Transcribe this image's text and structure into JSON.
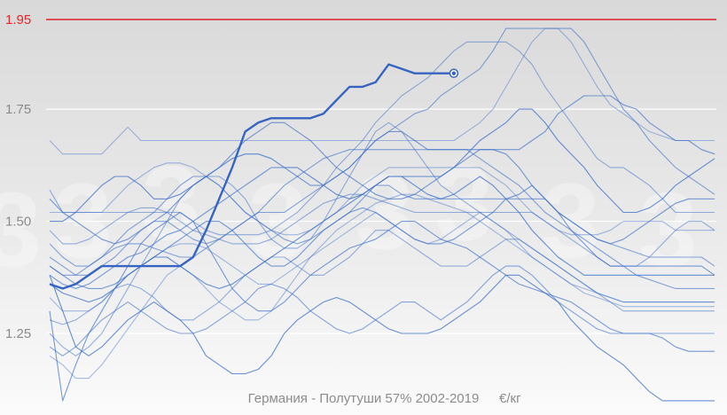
{
  "chart_data": {
    "type": "line",
    "title": "Германия - Полутуши 57% 2002-2019",
    "unit": "€/кг",
    "ylim": [
      1.1,
      1.97
    ],
    "xlim": [
      1,
      52
    ],
    "y_ticks": [
      "1.25",
      "1.50",
      "1.75"
    ],
    "reference_line": {
      "value": 1.95,
      "label": "1.95",
      "color": "#e0202a"
    },
    "grid": true,
    "watermark_text": "3",
    "series_color": "#3b6fc9",
    "highlight_color": "#3564c2",
    "series": [
      {
        "values": [
          1.68,
          1.65,
          1.65,
          1.65,
          1.65,
          1.68,
          1.71,
          1.68,
          1.68,
          1.68,
          1.68,
          1.68,
          1.68,
          1.68,
          1.68,
          1.68,
          1.68,
          1.68,
          1.68,
          1.68,
          1.68,
          1.68,
          1.68,
          1.68,
          1.68,
          1.68,
          1.68,
          1.68,
          1.68,
          1.68,
          1.68,
          1.68,
          1.7,
          1.72,
          1.75,
          1.8,
          1.85,
          1.9,
          1.93,
          1.93,
          1.9,
          1.85,
          1.8,
          1.76,
          1.74,
          1.72,
          1.7,
          1.69,
          1.68,
          1.68,
          1.68,
          1.68
        ]
      },
      {
        "values": [
          1.57,
          1.52,
          1.52,
          1.52,
          1.52,
          1.52,
          1.52,
          1.52,
          1.52,
          1.52,
          1.52,
          1.5,
          1.48,
          1.47,
          1.47,
          1.47,
          1.47,
          1.48,
          1.5,
          1.52,
          1.55,
          1.58,
          1.62,
          1.65,
          1.68,
          1.72,
          1.75,
          1.78,
          1.8,
          1.82,
          1.85,
          1.88,
          1.9,
          1.9,
          1.9,
          1.9,
          1.88,
          1.85,
          1.8,
          1.76,
          1.72,
          1.68,
          1.64,
          1.62,
          1.62,
          1.6,
          1.58,
          1.55,
          1.52,
          1.52,
          1.52,
          1.52
        ]
      },
      {
        "values": [
          1.4,
          1.38,
          1.38,
          1.4,
          1.42,
          1.44,
          1.45,
          1.45,
          1.44,
          1.43,
          1.42,
          1.42,
          1.44,
          1.46,
          1.48,
          1.5,
          1.52,
          1.52,
          1.52,
          1.54,
          1.56,
          1.58,
          1.6,
          1.62,
          1.65,
          1.68,
          1.7,
          1.72,
          1.74,
          1.75,
          1.78,
          1.8,
          1.82,
          1.84,
          1.88,
          1.93,
          1.93,
          1.93,
          1.93,
          1.93,
          1.93,
          1.9,
          1.85,
          1.8,
          1.75,
          1.72,
          1.68,
          1.65,
          1.62,
          1.6,
          1.58,
          1.56
        ]
      },
      {
        "values": [
          1.38,
          1.36,
          1.35,
          1.36,
          1.38,
          1.4,
          1.42,
          1.43,
          1.45,
          1.47,
          1.48,
          1.5,
          1.52,
          1.54,
          1.56,
          1.58,
          1.6,
          1.62,
          1.62,
          1.6,
          1.58,
          1.58,
          1.6,
          1.62,
          1.65,
          1.68,
          1.7,
          1.7,
          1.68,
          1.66,
          1.66,
          1.66,
          1.66,
          1.66,
          1.66,
          1.66,
          1.66,
          1.68,
          1.7,
          1.74,
          1.76,
          1.78,
          1.78,
          1.78,
          1.76,
          1.75,
          1.72,
          1.7,
          1.68,
          1.68,
          1.66,
          1.65
        ]
      },
      {
        "values": [
          1.5,
          1.5,
          1.52,
          1.55,
          1.58,
          1.6,
          1.6,
          1.58,
          1.55,
          1.55,
          1.56,
          1.58,
          1.6,
          1.62,
          1.64,
          1.65,
          1.65,
          1.64,
          1.62,
          1.62,
          1.6,
          1.58,
          1.56,
          1.55,
          1.56,
          1.58,
          1.6,
          1.6,
          1.6,
          1.6,
          1.6,
          1.62,
          1.65,
          1.68,
          1.7,
          1.72,
          1.75,
          1.75,
          1.72,
          1.68,
          1.65,
          1.62,
          1.58,
          1.55,
          1.52,
          1.52,
          1.53,
          1.55,
          1.58,
          1.6,
          1.62,
          1.64
        ]
      },
      {
        "values": [
          1.52,
          1.52,
          1.52,
          1.52,
          1.52,
          1.55,
          1.58,
          1.6,
          1.62,
          1.63,
          1.63,
          1.62,
          1.6,
          1.58,
          1.55,
          1.52,
          1.5,
          1.48,
          1.47,
          1.47,
          1.48,
          1.5,
          1.52,
          1.55,
          1.58,
          1.6,
          1.62,
          1.62,
          1.62,
          1.62,
          1.62,
          1.62,
          1.62,
          1.62,
          1.6,
          1.58,
          1.55,
          1.52,
          1.5,
          1.48,
          1.47,
          1.47,
          1.47,
          1.48,
          1.5,
          1.5,
          1.5,
          1.5,
          1.48,
          1.48,
          1.48,
          1.48
        ]
      },
      {
        "values": [
          1.48,
          1.45,
          1.45,
          1.46,
          1.48,
          1.5,
          1.52,
          1.53,
          1.53,
          1.52,
          1.5,
          1.48,
          1.47,
          1.46,
          1.45,
          1.45,
          1.45,
          1.46,
          1.48,
          1.5,
          1.52,
          1.54,
          1.55,
          1.56,
          1.56,
          1.55,
          1.54,
          1.53,
          1.52,
          1.52,
          1.52,
          1.52,
          1.52,
          1.52,
          1.52,
          1.52,
          1.52,
          1.52,
          1.5,
          1.48,
          1.46,
          1.44,
          1.42,
          1.4,
          1.4,
          1.4,
          1.42,
          1.45,
          1.48,
          1.5,
          1.5,
          1.48
        ]
      },
      {
        "values": [
          1.45,
          1.42,
          1.4,
          1.4,
          1.42,
          1.45,
          1.48,
          1.5,
          1.52,
          1.55,
          1.58,
          1.6,
          1.6,
          1.58,
          1.55,
          1.52,
          1.5,
          1.48,
          1.46,
          1.45,
          1.46,
          1.48,
          1.5,
          1.52,
          1.55,
          1.58,
          1.58,
          1.56,
          1.55,
          1.55,
          1.55,
          1.55,
          1.55,
          1.55,
          1.55,
          1.55,
          1.55,
          1.55,
          1.55,
          1.52,
          1.5,
          1.48,
          1.46,
          1.45,
          1.44,
          1.43,
          1.42,
          1.42,
          1.42,
          1.42,
          1.42,
          1.4
        ]
      },
      {
        "values": [
          1.4,
          1.38,
          1.36,
          1.35,
          1.35,
          1.36,
          1.38,
          1.4,
          1.42,
          1.44,
          1.46,
          1.48,
          1.5,
          1.5,
          1.48,
          1.45,
          1.42,
          1.4,
          1.4,
          1.42,
          1.45,
          1.48,
          1.5,
          1.52,
          1.53,
          1.52,
          1.5,
          1.48,
          1.46,
          1.45,
          1.45,
          1.46,
          1.48,
          1.5,
          1.52,
          1.55,
          1.56,
          1.58,
          1.55,
          1.52,
          1.48,
          1.45,
          1.42,
          1.4,
          1.4,
          1.4,
          1.4,
          1.4,
          1.4,
          1.4,
          1.4,
          1.38
        ]
      },
      {
        "values": [
          1.36,
          1.34,
          1.33,
          1.32,
          1.33,
          1.35,
          1.38,
          1.4,
          1.42,
          1.42,
          1.4,
          1.38,
          1.36,
          1.35,
          1.36,
          1.38,
          1.4,
          1.42,
          1.44,
          1.46,
          1.48,
          1.5,
          1.52,
          1.54,
          1.56,
          1.58,
          1.6,
          1.6,
          1.58,
          1.56,
          1.55,
          1.56,
          1.58,
          1.6,
          1.58,
          1.55,
          1.52,
          1.48,
          1.45,
          1.42,
          1.4,
          1.38,
          1.38,
          1.38,
          1.38,
          1.38,
          1.38,
          1.38,
          1.38,
          1.38,
          1.38,
          1.38
        ]
      },
      {
        "values": [
          1.33,
          1.3,
          1.3,
          1.3,
          1.32,
          1.35,
          1.38,
          1.4,
          1.42,
          1.44,
          1.45,
          1.45,
          1.44,
          1.42,
          1.4,
          1.38,
          1.36,
          1.36,
          1.38,
          1.4,
          1.42,
          1.44,
          1.46,
          1.48,
          1.5,
          1.52,
          1.5,
          1.48,
          1.46,
          1.45,
          1.46,
          1.48,
          1.5,
          1.52,
          1.5,
          1.48,
          1.45,
          1.42,
          1.4,
          1.38,
          1.36,
          1.35,
          1.34,
          1.33,
          1.32,
          1.32,
          1.32,
          1.32,
          1.32,
          1.32,
          1.32,
          1.32
        ]
      },
      {
        "values": [
          1.28,
          1.27,
          1.28,
          1.3,
          1.32,
          1.35,
          1.36,
          1.35,
          1.33,
          1.3,
          1.28,
          1.28,
          1.3,
          1.32,
          1.35,
          1.38,
          1.4,
          1.42,
          1.42,
          1.4,
          1.38,
          1.38,
          1.4,
          1.42,
          1.45,
          1.48,
          1.48,
          1.46,
          1.44,
          1.42,
          1.4,
          1.4,
          1.4,
          1.42,
          1.44,
          1.46,
          1.46,
          1.44,
          1.42,
          1.4,
          1.38,
          1.36,
          1.34,
          1.32,
          1.3,
          1.3,
          1.3,
          1.3,
          1.3,
          1.3,
          1.3,
          1.3
        ]
      },
      {
        "values": [
          1.22,
          1.2,
          1.22,
          1.25,
          1.28,
          1.3,
          1.32,
          1.3,
          1.28,
          1.26,
          1.25,
          1.25,
          1.26,
          1.28,
          1.3,
          1.32,
          1.35,
          1.36,
          1.35,
          1.33,
          1.3,
          1.28,
          1.26,
          1.25,
          1.26,
          1.28,
          1.3,
          1.32,
          1.32,
          1.3,
          1.28,
          1.3,
          1.32,
          1.35,
          1.38,
          1.4,
          1.4,
          1.38,
          1.35,
          1.32,
          1.3,
          1.28,
          1.26,
          1.25,
          1.25,
          1.25,
          1.25,
          1.25,
          1.25,
          1.25,
          1.25,
          1.25
        ]
      },
      {
        "values": [
          1.3,
          1.1,
          1.18,
          1.25,
          1.3,
          1.35,
          1.4,
          1.45,
          1.48,
          1.5,
          1.52,
          1.5,
          1.45,
          1.4,
          1.35,
          1.32,
          1.3,
          1.3,
          1.32,
          1.35,
          1.38,
          1.4,
          1.42,
          1.44,
          1.45,
          1.46,
          1.48,
          1.5,
          1.5,
          1.48,
          1.46,
          1.45,
          1.44,
          1.42,
          1.4,
          1.38,
          1.36,
          1.35,
          1.34,
          1.33,
          1.32,
          1.3,
          1.28,
          1.26,
          1.25,
          1.25,
          1.25,
          1.24,
          1.22,
          1.21,
          1.21,
          1.21
        ]
      },
      {
        "values": [
          1.38,
          1.3,
          1.22,
          1.2,
          1.22,
          1.25,
          1.28,
          1.3,
          1.32,
          1.3,
          1.28,
          1.25,
          1.2,
          1.18,
          1.16,
          1.16,
          1.17,
          1.2,
          1.25,
          1.28,
          1.3,
          1.32,
          1.33,
          1.32,
          1.3,
          1.28,
          1.26,
          1.25,
          1.25,
          1.25,
          1.26,
          1.28,
          1.3,
          1.32,
          1.35,
          1.38,
          1.38,
          1.36,
          1.34,
          1.32,
          1.28,
          1.25,
          1.22,
          1.2,
          1.18,
          1.15,
          1.12,
          1.1,
          1.1,
          1.1,
          1.1,
          1.1
        ]
      },
      {
        "values": [
          1.2,
          1.18,
          1.15,
          1.15,
          1.18,
          1.22,
          1.26,
          1.3,
          1.34,
          1.38,
          1.4,
          1.38,
          1.35,
          1.32,
          1.3,
          1.28,
          1.28,
          1.3,
          1.34,
          1.38,
          1.42,
          1.45,
          1.48,
          1.5,
          1.52,
          1.54,
          1.55,
          1.56,
          1.56,
          1.55,
          1.54,
          1.53,
          1.52,
          1.5,
          1.48,
          1.46,
          1.44,
          1.42,
          1.4,
          1.38,
          1.36,
          1.34,
          1.33,
          1.32,
          1.31,
          1.31,
          1.31,
          1.31,
          1.31,
          1.31,
          1.31,
          1.31
        ]
      },
      {
        "values": [
          1.25,
          1.22,
          1.2,
          1.22,
          1.25,
          1.3,
          1.35,
          1.4,
          1.45,
          1.5,
          1.55,
          1.58,
          1.6,
          1.6,
          1.58,
          1.55,
          1.5,
          1.46,
          1.44,
          1.44,
          1.46,
          1.5,
          1.55,
          1.6,
          1.65,
          1.7,
          1.72,
          1.7,
          1.66,
          1.62,
          1.58,
          1.56,
          1.54,
          1.52,
          1.5,
          1.48,
          1.46,
          1.44,
          1.42,
          1.4,
          1.38,
          1.36,
          1.34,
          1.33,
          1.32,
          1.32,
          1.32,
          1.32,
          1.32,
          1.32,
          1.32,
          1.32
        ]
      },
      {
        "values": [
          1.42,
          1.4,
          1.38,
          1.38,
          1.4,
          1.42,
          1.45,
          1.48,
          1.5,
          1.5,
          1.48,
          1.46,
          1.45,
          1.46,
          1.48,
          1.5,
          1.52,
          1.55,
          1.58,
          1.6,
          1.62,
          1.64,
          1.65,
          1.66,
          1.66,
          1.66,
          1.66,
          1.66,
          1.66,
          1.66,
          1.66,
          1.66,
          1.66,
          1.64,
          1.62,
          1.6,
          1.58,
          1.55,
          1.52,
          1.5,
          1.48,
          1.46,
          1.44,
          1.42,
          1.4,
          1.38,
          1.37,
          1.36,
          1.35,
          1.35,
          1.35,
          1.35
        ]
      },
      {
        "values": [
          1.55,
          1.52,
          1.5,
          1.48,
          1.46,
          1.45,
          1.46,
          1.48,
          1.5,
          1.52,
          1.55,
          1.58,
          1.6,
          1.62,
          1.65,
          1.68,
          1.7,
          1.72,
          1.72,
          1.7,
          1.68,
          1.65,
          1.62,
          1.6,
          1.58,
          1.56,
          1.55,
          1.55,
          1.56,
          1.58,
          1.6,
          1.62,
          1.64,
          1.66,
          1.66,
          1.65,
          1.62,
          1.58,
          1.55,
          1.52,
          1.5,
          1.48,
          1.46,
          1.45,
          1.46,
          1.48,
          1.5,
          1.52,
          1.54,
          1.55,
          1.55,
          1.55
        ]
      },
      {
        "values": [
          1.36,
          1.35,
          1.36,
          1.38,
          1.4,
          1.4,
          1.4,
          1.4,
          1.4,
          1.4,
          1.4,
          1.42,
          1.48,
          1.55,
          1.62,
          1.7,
          1.72,
          1.73,
          1.73,
          1.73,
          1.73,
          1.74,
          1.77,
          1.8,
          1.8,
          1.81,
          1.85,
          1.84,
          1.83,
          1.83,
          1.83,
          1.83,
          null,
          null,
          null,
          null,
          null,
          null,
          null,
          null,
          null,
          null,
          null,
          null,
          null,
          null,
          null,
          null,
          null,
          null,
          null,
          null
        ],
        "highlight": true
      }
    ]
  }
}
